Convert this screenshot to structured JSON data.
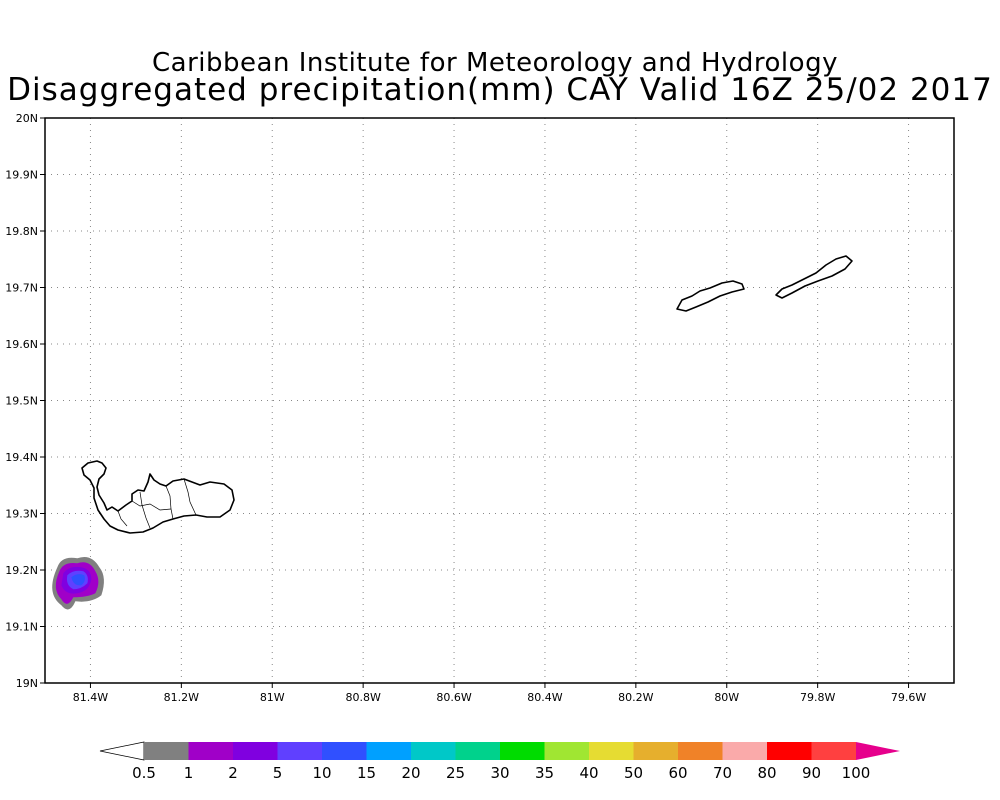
{
  "header": {
    "title": "Caribbean Institute for Meteorology and Hydrology",
    "subtitle": "Disaggregated precipitation(mm) CAY Valid 16Z 25/02 2017"
  },
  "map": {
    "lon_range": [
      -81.5,
      -79.5
    ],
    "lat_range": [
      19.0,
      20.0
    ],
    "lat_ticks": [
      {
        "value": 20.0,
        "label": "20N"
      },
      {
        "value": 19.9,
        "label": "19.9N"
      },
      {
        "value": 19.8,
        "label": "19.8N"
      },
      {
        "value": 19.7,
        "label": "19.7N"
      },
      {
        "value": 19.6,
        "label": "19.6N"
      },
      {
        "value": 19.5,
        "label": "19.5N"
      },
      {
        "value": 19.4,
        "label": "19.4N"
      },
      {
        "value": 19.3,
        "label": "19.3N"
      },
      {
        "value": 19.2,
        "label": "19.2N"
      },
      {
        "value": 19.1,
        "label": "19.1N"
      },
      {
        "value": 19.0,
        "label": "19N"
      }
    ],
    "lon_ticks": [
      {
        "value": -81.4,
        "label": "81.4W"
      },
      {
        "value": -81.2,
        "label": "81.2W"
      },
      {
        "value": -81.0,
        "label": "81W"
      },
      {
        "value": -80.8,
        "label": "80.8W"
      },
      {
        "value": -80.6,
        "label": "80.6W"
      },
      {
        "value": -80.4,
        "label": "80.4W"
      },
      {
        "value": -80.2,
        "label": "80.2W"
      },
      {
        "value": -80.0,
        "label": "80W"
      },
      {
        "value": -79.8,
        "label": "79.8W"
      },
      {
        "value": -79.6,
        "label": "79.6W"
      }
    ],
    "grid": "dotted",
    "islands": [
      "Grand Cayman",
      "Little Cayman",
      "Cayman Brac"
    ],
    "precipitation_areas": [
      {
        "center_lon": -81.42,
        "center_lat": 19.18,
        "max_mm": 15,
        "min_mm": 0.5
      }
    ]
  },
  "colorbar": {
    "labels": [
      "0.5",
      "1",
      "2",
      "5",
      "10",
      "15",
      "20",
      "25",
      "30",
      "35",
      "40",
      "50",
      "60",
      "70",
      "80",
      "90",
      "100"
    ],
    "colors": [
      "#ffffff",
      "#808080",
      "#a000c8",
      "#8000e0",
      "#6040ff",
      "#3050ff",
      "#00a0ff",
      "#00c8c8",
      "#00d28c",
      "#00dc00",
      "#a0e632",
      "#e6dc32",
      "#e6af2d",
      "#f08228",
      "#faaaaa",
      "#ff0000",
      "#ff4040",
      "#e6008c"
    ]
  }
}
